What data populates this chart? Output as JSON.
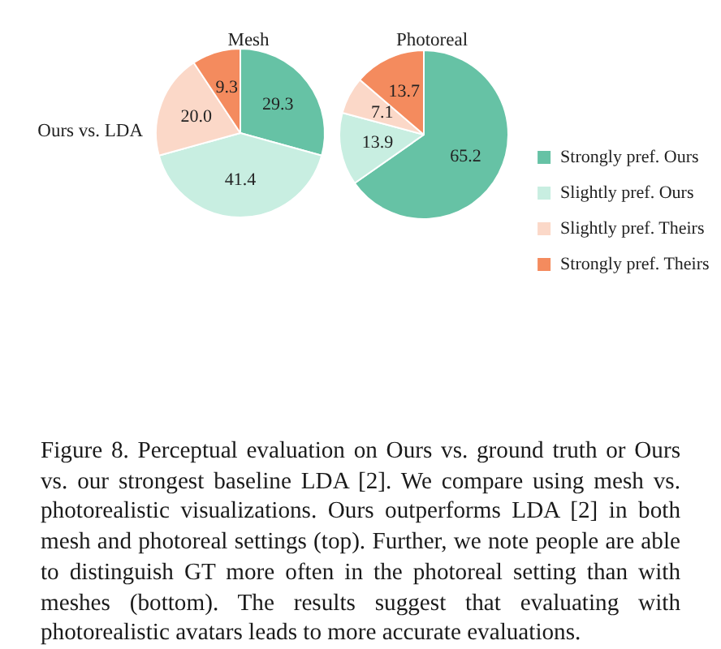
{
  "chart_data": {
    "type": "pie",
    "ylabel": "Ours vs. LDA",
    "categories": [
      "Strongly pref. Ours",
      "Slightly pref. Ours",
      "Slightly pref. Theirs",
      "Strongly pref. Theirs"
    ],
    "colors": [
      "#66c2a5",
      "#c8eee1",
      "#fbd8c8",
      "#f48b5e"
    ],
    "series": [
      {
        "name": "Mesh",
        "values": [
          29.3,
          41.4,
          20.0,
          9.3
        ],
        "value_labels": [
          "29.3",
          "41.4",
          "20.0",
          "9.3"
        ]
      },
      {
        "name": "Photoreal",
        "values": [
          65.2,
          13.9,
          7.1,
          13.7
        ],
        "value_labels": [
          "65.2",
          "13.9",
          "7.1",
          "13.7"
        ]
      }
    ],
    "legend": "bottom right",
    "annotations": [
      "Figure 8. Perceptual evaluation on Ours vs. ground truth or Ours vs. our strongest baseline LDA [2]. We compare using mesh vs. photorealistic visualizations. Ours outperforms LDA [2] in both mesh and photoreal settings (top). Further, we note people are able to distinguish GT more often in the photoreal setting than with meshes (bottom). The results suggest that evaluating with photorealistic avatars leads to more accurate evaluations."
    ]
  }
}
